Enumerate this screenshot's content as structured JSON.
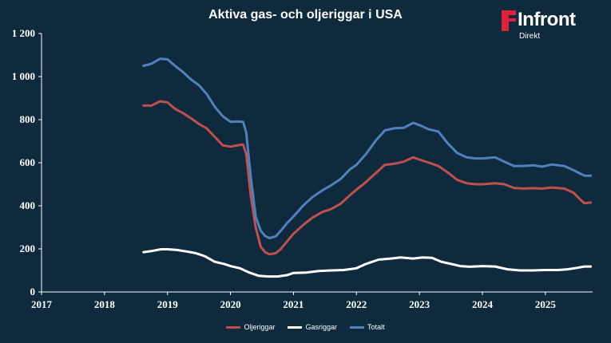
{
  "chart_data": {
    "type": "line",
    "title": "Aktiva gas- och oljeriggar i USA",
    "xlabel": "",
    "ylabel": "",
    "xlim": [
      2017.0,
      2025.75
    ],
    "ylim": [
      0,
      1200
    ],
    "y_ticks": [
      0,
      200,
      400,
      600,
      800,
      1000,
      1200
    ],
    "y_tick_labels": [
      "0",
      "200",
      "400",
      "600",
      "800",
      "1 000",
      "1 200"
    ],
    "x_ticks": [
      2017,
      2018,
      2019,
      2020,
      2021,
      2022,
      2023,
      2024,
      2025
    ],
    "x_tick_labels": [
      "2017",
      "2018",
      "2019",
      "2020",
      "2021",
      "2022",
      "2023",
      "2024",
      "2025"
    ],
    "grid": false,
    "legend_position": "bottom",
    "series": [
      {
        "name": "Oljeriggar",
        "color": "#c0504d",
        "points": [
          [
            2018.62,
            865
          ],
          [
            2018.75,
            866
          ],
          [
            2018.88,
            885
          ],
          [
            2019.0,
            880
          ],
          [
            2019.12,
            850
          ],
          [
            2019.25,
            830
          ],
          [
            2019.38,
            805
          ],
          [
            2019.5,
            780
          ],
          [
            2019.62,
            760
          ],
          [
            2019.75,
            720
          ],
          [
            2019.88,
            680
          ],
          [
            2020.0,
            675
          ],
          [
            2020.1,
            680
          ],
          [
            2020.2,
            685
          ],
          [
            2020.25,
            640
          ],
          [
            2020.32,
            450
          ],
          [
            2020.4,
            300
          ],
          [
            2020.48,
            210
          ],
          [
            2020.55,
            185
          ],
          [
            2020.62,
            175
          ],
          [
            2020.72,
            180
          ],
          [
            2020.8,
            200
          ],
          [
            2020.9,
            235
          ],
          [
            2021.0,
            270
          ],
          [
            2021.15,
            310
          ],
          [
            2021.3,
            345
          ],
          [
            2021.45,
            370
          ],
          [
            2021.6,
            385
          ],
          [
            2021.75,
            410
          ],
          [
            2021.9,
            450
          ],
          [
            2022.0,
            475
          ],
          [
            2022.15,
            510
          ],
          [
            2022.3,
            550
          ],
          [
            2022.45,
            590
          ],
          [
            2022.6,
            595
          ],
          [
            2022.75,
            605
          ],
          [
            2022.9,
            625
          ],
          [
            2023.0,
            615
          ],
          [
            2023.15,
            600
          ],
          [
            2023.3,
            585
          ],
          [
            2023.45,
            555
          ],
          [
            2023.6,
            520
          ],
          [
            2023.75,
            505
          ],
          [
            2023.9,
            500
          ],
          [
            2024.0,
            500
          ],
          [
            2024.2,
            505
          ],
          [
            2024.35,
            500
          ],
          [
            2024.5,
            483
          ],
          [
            2024.65,
            480
          ],
          [
            2024.8,
            482
          ],
          [
            2024.95,
            480
          ],
          [
            2025.1,
            485
          ],
          [
            2025.3,
            480
          ],
          [
            2025.45,
            460
          ],
          [
            2025.55,
            430
          ],
          [
            2025.62,
            412
          ],
          [
            2025.72,
            415
          ]
        ]
      },
      {
        "name": "Gasriggar",
        "color": "#ffffff",
        "points": [
          [
            2018.62,
            185
          ],
          [
            2018.75,
            190
          ],
          [
            2018.9,
            198
          ],
          [
            2019.0,
            198
          ],
          [
            2019.15,
            195
          ],
          [
            2019.3,
            188
          ],
          [
            2019.45,
            180
          ],
          [
            2019.6,
            165
          ],
          [
            2019.75,
            140
          ],
          [
            2019.9,
            130
          ],
          [
            2020.0,
            120
          ],
          [
            2020.15,
            110
          ],
          [
            2020.3,
            90
          ],
          [
            2020.45,
            75
          ],
          [
            2020.6,
            72
          ],
          [
            2020.75,
            72
          ],
          [
            2020.9,
            78
          ],
          [
            2021.0,
            88
          ],
          [
            2021.2,
            90
          ],
          [
            2021.4,
            97
          ],
          [
            2021.6,
            100
          ],
          [
            2021.8,
            102
          ],
          [
            2022.0,
            110
          ],
          [
            2022.15,
            130
          ],
          [
            2022.35,
            150
          ],
          [
            2022.55,
            155
          ],
          [
            2022.7,
            160
          ],
          [
            2022.9,
            155
          ],
          [
            2023.05,
            160
          ],
          [
            2023.2,
            158
          ],
          [
            2023.35,
            140
          ],
          [
            2023.5,
            130
          ],
          [
            2023.65,
            120
          ],
          [
            2023.8,
            117
          ],
          [
            2024.0,
            120
          ],
          [
            2024.2,
            118
          ],
          [
            2024.4,
            105
          ],
          [
            2024.6,
            100
          ],
          [
            2024.8,
            100
          ],
          [
            2025.0,
            102
          ],
          [
            2025.2,
            102
          ],
          [
            2025.35,
            105
          ],
          [
            2025.5,
            112
          ],
          [
            2025.62,
            118
          ],
          [
            2025.72,
            118
          ]
        ]
      },
      {
        "name": "Totalt",
        "color": "#4f81bd",
        "points": [
          [
            2018.62,
            1050
          ],
          [
            2018.75,
            1060
          ],
          [
            2018.88,
            1083
          ],
          [
            2019.0,
            1080
          ],
          [
            2019.12,
            1050
          ],
          [
            2019.25,
            1020
          ],
          [
            2019.38,
            985
          ],
          [
            2019.5,
            960
          ],
          [
            2019.62,
            920
          ],
          [
            2019.75,
            860
          ],
          [
            2019.88,
            815
          ],
          [
            2020.0,
            790
          ],
          [
            2020.1,
            792
          ],
          [
            2020.2,
            790
          ],
          [
            2020.25,
            740
          ],
          [
            2020.32,
            540
          ],
          [
            2020.4,
            350
          ],
          [
            2020.48,
            285
          ],
          [
            2020.55,
            260
          ],
          [
            2020.62,
            250
          ],
          [
            2020.72,
            258
          ],
          [
            2020.8,
            285
          ],
          [
            2020.9,
            320
          ],
          [
            2021.0,
            350
          ],
          [
            2021.15,
            400
          ],
          [
            2021.3,
            440
          ],
          [
            2021.45,
            470
          ],
          [
            2021.6,
            495
          ],
          [
            2021.75,
            525
          ],
          [
            2021.9,
            570
          ],
          [
            2022.0,
            590
          ],
          [
            2022.15,
            640
          ],
          [
            2022.3,
            700
          ],
          [
            2022.45,
            750
          ],
          [
            2022.6,
            760
          ],
          [
            2022.75,
            762
          ],
          [
            2022.9,
            785
          ],
          [
            2023.0,
            775
          ],
          [
            2023.15,
            755
          ],
          [
            2023.3,
            745
          ],
          [
            2023.45,
            690
          ],
          [
            2023.6,
            645
          ],
          [
            2023.75,
            625
          ],
          [
            2023.9,
            620
          ],
          [
            2024.0,
            620
          ],
          [
            2024.2,
            625
          ],
          [
            2024.35,
            605
          ],
          [
            2024.5,
            585
          ],
          [
            2024.65,
            585
          ],
          [
            2024.8,
            588
          ],
          [
            2024.95,
            582
          ],
          [
            2025.1,
            592
          ],
          [
            2025.3,
            585
          ],
          [
            2025.45,
            565
          ],
          [
            2025.55,
            550
          ],
          [
            2025.62,
            540
          ],
          [
            2025.72,
            540
          ]
        ]
      }
    ]
  },
  "logo": {
    "brand": "Infront",
    "sub": "Direkt",
    "color": "#e0213a"
  }
}
